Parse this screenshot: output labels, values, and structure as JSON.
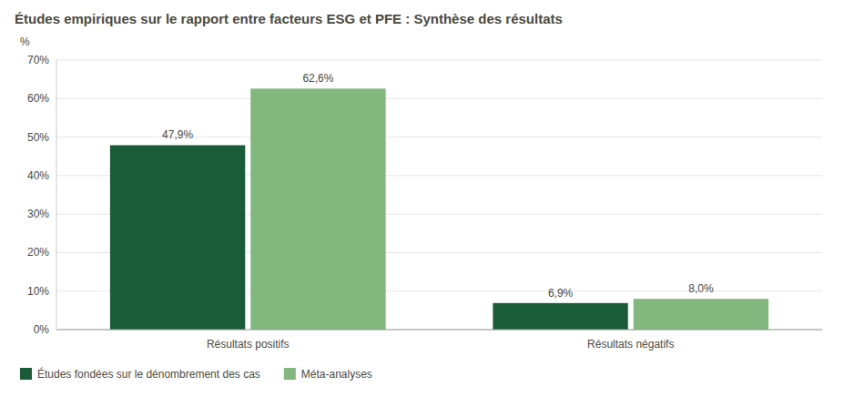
{
  "chart_data": {
    "type": "bar",
    "title": "Études empiriques sur le rapport entre facteurs ESG et PFE : Synthèse des résultats",
    "ylabel": "%",
    "categories": [
      "Résultats positifs",
      "Résultats négatifs"
    ],
    "series": [
      {
        "name": "Études fondées sur le dénombrement des cas",
        "color": "#1a5c38",
        "values": [
          47.9,
          6.9
        ],
        "value_labels": [
          "47,9%",
          "6,9%"
        ]
      },
      {
        "name": "Méta-analyses",
        "color": "#82b87e",
        "values": [
          62.6,
          8.0
        ],
        "value_labels": [
          "62,6%",
          "8,0%"
        ]
      }
    ],
    "ylim": [
      0,
      70
    ],
    "yticks": [
      {
        "value": 0,
        "label": "0%"
      },
      {
        "value": 10,
        "label": "10%"
      },
      {
        "value": 20,
        "label": "20%"
      },
      {
        "value": 30,
        "label": "30%"
      },
      {
        "value": 40,
        "label": "40%"
      },
      {
        "value": 50,
        "label": "50%"
      },
      {
        "value": 60,
        "label": "60%"
      },
      {
        "value": 70,
        "label": "70%"
      }
    ],
    "grid": true,
    "data_labels": true,
    "legend": "bottom"
  }
}
